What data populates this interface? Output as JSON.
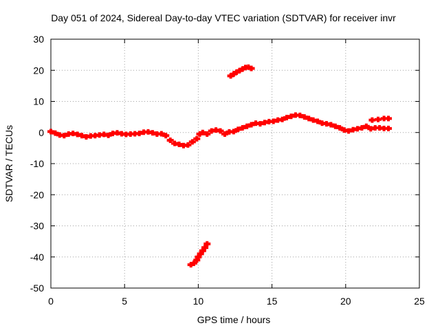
{
  "chart_data": {
    "type": "scatter",
    "title": "Day 051 of 2024, Sidereal Day-to-day VTEC variation (SDTVAR) for receiver invr",
    "xlabel": "GPS time / hours",
    "ylabel": "SDTVAR / TECUs",
    "xlim": [
      0,
      25
    ],
    "ylim": [
      -50,
      30
    ],
    "xticks": [
      0,
      5,
      10,
      15,
      20,
      25
    ],
    "yticks": [
      -50,
      -40,
      -30,
      -20,
      -10,
      0,
      10,
      20,
      30
    ],
    "grid": true,
    "marker": "+",
    "series_color": "#ff0000",
    "series": [
      {
        "name": "SDTVAR",
        "points": [
          [
            0.0,
            0.3
          ],
          [
            0.3,
            -0.2
          ],
          [
            0.6,
            -0.8
          ],
          [
            0.9,
            -1.0
          ],
          [
            1.2,
            -0.5
          ],
          [
            1.5,
            -0.3
          ],
          [
            1.8,
            -0.6
          ],
          [
            2.1,
            -1.0
          ],
          [
            2.4,
            -1.4
          ],
          [
            2.7,
            -1.1
          ],
          [
            3.0,
            -1.0
          ],
          [
            3.3,
            -0.8
          ],
          [
            3.6,
            -0.6
          ],
          [
            3.9,
            -0.9
          ],
          [
            4.2,
            -0.3
          ],
          [
            4.5,
            -0.1
          ],
          [
            4.8,
            -0.4
          ],
          [
            5.1,
            -0.6
          ],
          [
            5.4,
            -0.5
          ],
          [
            5.7,
            -0.4
          ],
          [
            6.0,
            -0.3
          ],
          [
            6.3,
            0.1
          ],
          [
            6.6,
            0.2
          ],
          [
            6.9,
            -0.1
          ],
          [
            7.2,
            -0.5
          ],
          [
            7.5,
            -0.4
          ],
          [
            7.8,
            -1.0
          ],
          [
            8.1,
            -2.5
          ],
          [
            8.4,
            -3.5
          ],
          [
            8.7,
            -3.8
          ],
          [
            9.0,
            -4.2
          ],
          [
            9.3,
            -4.0
          ],
          [
            9.6,
            -3.0
          ],
          [
            9.9,
            -2.0
          ],
          [
            10.1,
            -0.5
          ],
          [
            10.3,
            0.0
          ],
          [
            10.6,
            -0.5
          ],
          [
            10.9,
            0.5
          ],
          [
            11.2,
            0.8
          ],
          [
            11.5,
            0.5
          ],
          [
            11.8,
            -0.5
          ],
          [
            12.1,
            0.2
          ],
          [
            12.4,
            0.3
          ],
          [
            12.7,
            1.0
          ],
          [
            13.0,
            1.5
          ],
          [
            13.3,
            2.0
          ],
          [
            13.6,
            2.5
          ],
          [
            13.9,
            3.0
          ],
          [
            14.2,
            2.8
          ],
          [
            14.5,
            3.2
          ],
          [
            14.8,
            3.5
          ],
          [
            15.1,
            3.6
          ],
          [
            15.4,
            4.0
          ],
          [
            15.7,
            4.2
          ],
          [
            16.0,
            4.8
          ],
          [
            16.3,
            5.2
          ],
          [
            16.6,
            5.6
          ],
          [
            16.9,
            5.5
          ],
          [
            17.2,
            5.0
          ],
          [
            17.5,
            4.5
          ],
          [
            17.8,
            4.0
          ],
          [
            18.1,
            3.6
          ],
          [
            18.4,
            3.0
          ],
          [
            18.7,
            2.8
          ],
          [
            19.0,
            2.5
          ],
          [
            19.3,
            2.0
          ],
          [
            19.6,
            1.5
          ],
          [
            19.9,
            0.8
          ],
          [
            20.2,
            0.5
          ],
          [
            20.5,
            0.9
          ],
          [
            20.8,
            1.2
          ],
          [
            21.1,
            1.5
          ],
          [
            21.4,
            2.0
          ],
          [
            21.7,
            1.2
          ],
          [
            22.0,
            1.5
          ],
          [
            22.3,
            1.5
          ],
          [
            22.6,
            1.3
          ],
          [
            22.9,
            1.3
          ],
          [
            21.8,
            4.0
          ],
          [
            22.2,
            4.2
          ],
          [
            22.6,
            4.5
          ],
          [
            22.9,
            4.5
          ],
          [
            12.2,
            18.2
          ],
          [
            12.4,
            18.8
          ],
          [
            12.6,
            19.4
          ],
          [
            12.8,
            19.9
          ],
          [
            13.0,
            20.4
          ],
          [
            13.2,
            20.9
          ],
          [
            13.4,
            21.0
          ],
          [
            13.6,
            20.6
          ],
          [
            9.5,
            -42.5
          ],
          [
            9.7,
            -42.0
          ],
          [
            9.9,
            -41.0
          ],
          [
            10.0,
            -40.0
          ],
          [
            10.15,
            -39.0
          ],
          [
            10.3,
            -38.0
          ],
          [
            10.45,
            -37.0
          ],
          [
            10.6,
            -35.8
          ]
        ]
      }
    ]
  }
}
